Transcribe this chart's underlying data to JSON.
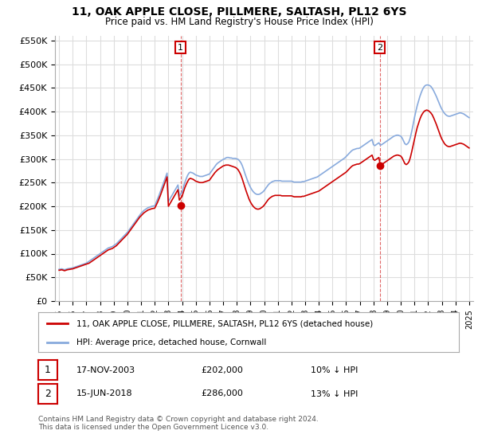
{
  "title": "11, OAK APPLE CLOSE, PILLMERE, SALTASH, PL12 6YS",
  "subtitle": "Price paid vs. HM Land Registry's House Price Index (HPI)",
  "legend_property": "11, OAK APPLE CLOSE, PILLMERE, SALTASH, PL12 6YS (detached house)",
  "legend_hpi": "HPI: Average price, detached house, Cornwall",
  "footnote": "Contains HM Land Registry data © Crown copyright and database right 2024.\nThis data is licensed under the Open Government Licence v3.0.",
  "transaction1": {
    "label": "1",
    "date": "17-NOV-2003",
    "price": "£202,000",
    "hpi": "10% ↓ HPI"
  },
  "transaction2": {
    "label": "2",
    "date": "15-JUN-2018",
    "price": "£286,000",
    "hpi": "13% ↓ HPI"
  },
  "ylim": [
    0,
    560000
  ],
  "yticks": [
    0,
    50000,
    100000,
    150000,
    200000,
    250000,
    300000,
    350000,
    400000,
    450000,
    500000,
    550000
  ],
  "property_color": "#cc0000",
  "hpi_color": "#88aadd",
  "bg_color": "#ffffff",
  "grid_color": "#dddddd",
  "sale1_year": 2003.88,
  "sale1_price": 202000,
  "sale2_year": 2018.46,
  "sale2_price": 286000,
  "hpi_x": [
    1995.0,
    1995.1,
    1995.2,
    1995.3,
    1995.4,
    1995.5,
    1995.6,
    1995.7,
    1995.8,
    1995.9,
    1996.0,
    1996.1,
    1996.2,
    1996.3,
    1996.4,
    1996.5,
    1996.6,
    1996.7,
    1996.8,
    1996.9,
    1997.0,
    1997.1,
    1997.2,
    1997.3,
    1997.4,
    1997.5,
    1997.6,
    1997.7,
    1997.8,
    1997.9,
    1998.0,
    1998.1,
    1998.2,
    1998.3,
    1998.4,
    1998.5,
    1998.6,
    1998.7,
    1998.8,
    1998.9,
    1999.0,
    1999.1,
    1999.2,
    1999.3,
    1999.4,
    1999.5,
    1999.6,
    1999.7,
    1999.8,
    1999.9,
    2000.0,
    2000.1,
    2000.2,
    2000.3,
    2000.4,
    2000.5,
    2000.6,
    2000.7,
    2000.8,
    2000.9,
    2001.0,
    2001.1,
    2001.2,
    2001.3,
    2001.4,
    2001.5,
    2001.6,
    2001.7,
    2001.8,
    2001.9,
    2002.0,
    2002.1,
    2002.2,
    2002.3,
    2002.4,
    2002.5,
    2002.6,
    2002.7,
    2002.8,
    2002.9,
    2003.0,
    2003.1,
    2003.2,
    2003.3,
    2003.4,
    2003.5,
    2003.6,
    2003.7,
    2003.8,
    2003.9,
    2004.0,
    2004.1,
    2004.2,
    2004.3,
    2004.4,
    2004.5,
    2004.6,
    2004.7,
    2004.8,
    2004.9,
    2005.0,
    2005.1,
    2005.2,
    2005.3,
    2005.4,
    2005.5,
    2005.6,
    2005.7,
    2005.8,
    2005.9,
    2006.0,
    2006.1,
    2006.2,
    2006.3,
    2006.4,
    2006.5,
    2006.6,
    2006.7,
    2006.8,
    2006.9,
    2007.0,
    2007.1,
    2007.2,
    2007.3,
    2007.4,
    2007.5,
    2007.6,
    2007.7,
    2007.8,
    2007.9,
    2008.0,
    2008.1,
    2008.2,
    2008.3,
    2008.4,
    2008.5,
    2008.6,
    2008.7,
    2008.8,
    2008.9,
    2009.0,
    2009.1,
    2009.2,
    2009.3,
    2009.4,
    2009.5,
    2009.6,
    2009.7,
    2009.8,
    2009.9,
    2010.0,
    2010.1,
    2010.2,
    2010.3,
    2010.4,
    2010.5,
    2010.6,
    2010.7,
    2010.8,
    2010.9,
    2011.0,
    2011.1,
    2011.2,
    2011.3,
    2011.4,
    2011.5,
    2011.6,
    2011.7,
    2011.8,
    2011.9,
    2012.0,
    2012.1,
    2012.2,
    2012.3,
    2012.4,
    2012.5,
    2012.6,
    2012.7,
    2012.8,
    2012.9,
    2013.0,
    2013.1,
    2013.2,
    2013.3,
    2013.4,
    2013.5,
    2013.6,
    2013.7,
    2013.8,
    2013.9,
    2014.0,
    2014.1,
    2014.2,
    2014.3,
    2014.4,
    2014.5,
    2014.6,
    2014.7,
    2014.8,
    2014.9,
    2015.0,
    2015.1,
    2015.2,
    2015.3,
    2015.4,
    2015.5,
    2015.6,
    2015.7,
    2015.8,
    2015.9,
    2016.0,
    2016.1,
    2016.2,
    2016.3,
    2016.4,
    2016.5,
    2016.6,
    2016.7,
    2016.8,
    2016.9,
    2017.0,
    2017.1,
    2017.2,
    2017.3,
    2017.4,
    2017.5,
    2017.6,
    2017.7,
    2017.8,
    2017.9,
    2018.0,
    2018.1,
    2018.2,
    2018.3,
    2018.4,
    2018.5,
    2018.6,
    2018.7,
    2018.8,
    2018.9,
    2019.0,
    2019.1,
    2019.2,
    2019.3,
    2019.4,
    2019.5,
    2019.6,
    2019.7,
    2019.8,
    2019.9,
    2020.0,
    2020.1,
    2020.2,
    2020.3,
    2020.4,
    2020.5,
    2020.6,
    2020.7,
    2020.8,
    2020.9,
    2021.0,
    2021.1,
    2021.2,
    2021.3,
    2021.4,
    2021.5,
    2021.6,
    2021.7,
    2021.8,
    2021.9,
    2022.0,
    2022.1,
    2022.2,
    2022.3,
    2022.4,
    2022.5,
    2022.6,
    2022.7,
    2022.8,
    2022.9,
    2023.0,
    2023.1,
    2023.2,
    2023.3,
    2023.4,
    2023.5,
    2023.6,
    2023.7,
    2023.8,
    2023.9,
    2024.0,
    2024.1,
    2024.2,
    2024.3,
    2024.4,
    2024.5,
    2024.6,
    2024.7,
    2024.8,
    2024.9,
    2025.0
  ],
  "hpi_y": [
    67000,
    67500,
    68000,
    67000,
    66000,
    67000,
    68000,
    68500,
    69000,
    69500,
    70000,
    71000,
    72000,
    73000,
    74000,
    75000,
    76000,
    77000,
    78000,
    79000,
    80000,
    82000,
    84000,
    86000,
    88000,
    90000,
    92000,
    94000,
    96000,
    98000,
    100000,
    102000,
    104000,
    106000,
    108000,
    110000,
    112000,
    113000,
    114000,
    115000,
    117000,
    119000,
    121000,
    124000,
    127000,
    130000,
    133000,
    136000,
    139000,
    142000,
    145000,
    149000,
    153000,
    157000,
    161000,
    165000,
    169000,
    173000,
    177000,
    181000,
    185000,
    188000,
    191000,
    193000,
    195000,
    197000,
    198000,
    199000,
    200000,
    200500,
    201000,
    208000,
    215000,
    222000,
    230000,
    238000,
    246000,
    254000,
    262000,
    270000,
    210000,
    215000,
    220000,
    225000,
    230000,
    235000,
    240000,
    245000,
    222000,
    226000,
    230000,
    240000,
    250000,
    258000,
    265000,
    270000,
    272000,
    271000,
    270000,
    268000,
    266000,
    265000,
    264000,
    263000,
    263000,
    263000,
    264000,
    265000,
    266000,
    267000,
    268000,
    272000,
    276000,
    280000,
    284000,
    288000,
    291000,
    293000,
    295000,
    297000,
    299000,
    300000,
    302000,
    303000,
    303000,
    302000,
    302000,
    301000,
    301000,
    301000,
    300000,
    299000,
    296000,
    292000,
    286000,
    278000,
    269000,
    261000,
    253000,
    246000,
    240000,
    235000,
    231000,
    228000,
    226000,
    225000,
    225000,
    226000,
    228000,
    230000,
    233000,
    237000,
    241000,
    245000,
    248000,
    250000,
    252000,
    253000,
    254000,
    254000,
    254000,
    254000,
    254000,
    253000,
    253000,
    253000,
    253000,
    253000,
    253000,
    253000,
    253000,
    252000,
    251000,
    251000,
    251000,
    251000,
    251000,
    251000,
    252000,
    252000,
    253000,
    254000,
    255000,
    256000,
    257000,
    258000,
    259000,
    260000,
    261000,
    262000,
    264000,
    266000,
    268000,
    270000,
    272000,
    274000,
    276000,
    278000,
    280000,
    282000,
    284000,
    286000,
    288000,
    290000,
    292000,
    294000,
    296000,
    298000,
    300000,
    302000,
    305000,
    308000,
    311000,
    314000,
    317000,
    319000,
    320000,
    321000,
    322000,
    322000,
    323000,
    325000,
    327000,
    329000,
    331000,
    333000,
    335000,
    337000,
    339000,
    341000,
    330000,
    328000,
    330000,
    332000,
    334000,
    329000,
    330000,
    332000,
    334000,
    336000,
    338000,
    340000,
    342000,
    344000,
    346000,
    348000,
    349000,
    350000,
    350000,
    349000,
    348000,
    344000,
    338000,
    332000,
    330000,
    332000,
    336000,
    345000,
    358000,
    372000,
    387000,
    400000,
    412000,
    422000,
    432000,
    440000,
    447000,
    452000,
    455000,
    456000,
    456000,
    455000,
    453000,
    449000,
    444000,
    438000,
    432000,
    425000,
    418000,
    411000,
    405000,
    400000,
    396000,
    393000,
    391000,
    390000,
    390000,
    391000,
    392000,
    393000,
    394000,
    395000,
    396000,
    397000,
    397000,
    396000,
    395000,
    393000,
    391000,
    389000,
    387000
  ],
  "prop_y": [
    65000,
    65500,
    66000,
    65000,
    64000,
    65000,
    66000,
    66500,
    67000,
    67500,
    68000,
    69000,
    70000,
    71000,
    72000,
    73000,
    74000,
    75000,
    76000,
    77000,
    78000,
    79000,
    80000,
    82000,
    84000,
    86000,
    88000,
    90000,
    92000,
    94000,
    96000,
    98000,
    100000,
    102000,
    104000,
    106000,
    108000,
    109000,
    110000,
    111000,
    113000,
    115000,
    117000,
    120000,
    123000,
    126000,
    129000,
    132000,
    135000,
    138000,
    141000,
    145000,
    149000,
    153000,
    157000,
    161000,
    165000,
    169000,
    173000,
    177000,
    180000,
    183000,
    186000,
    188000,
    190000,
    192000,
    193000,
    194000,
    195000,
    195500,
    196000,
    202000,
    208000,
    215000,
    222000,
    230000,
    238000,
    246000,
    254000,
    262000,
    200000,
    205000,
    210000,
    215000,
    220000,
    225000,
    230000,
    235000,
    213000,
    217000,
    221000,
    230000,
    239000,
    246000,
    252000,
    257000,
    259000,
    258000,
    257000,
    255000,
    253000,
    252000,
    251000,
    250000,
    250000,
    250000,
    251000,
    252000,
    253000,
    254000,
    255000,
    259000,
    263000,
    267000,
    271000,
    274000,
    277000,
    279000,
    281000,
    283000,
    285000,
    286000,
    287000,
    287000,
    287000,
    286000,
    285000,
    284000,
    283000,
    282000,
    280000,
    277000,
    272000,
    266000,
    258000,
    249000,
    240000,
    231000,
    223000,
    215000,
    209000,
    204000,
    200000,
    197000,
    195000,
    194000,
    194000,
    195000,
    197000,
    199000,
    202000,
    206000,
    210000,
    214000,
    217000,
    219000,
    221000,
    222000,
    223000,
    223000,
    223000,
    223000,
    223000,
    222000,
    222000,
    222000,
    222000,
    222000,
    222000,
    222000,
    222000,
    221000,
    220000,
    220000,
    220000,
    220000,
    220000,
    220000,
    221000,
    221000,
    222000,
    223000,
    224000,
    225000,
    226000,
    227000,
    228000,
    229000,
    230000,
    231000,
    232000,
    234000,
    236000,
    238000,
    240000,
    242000,
    244000,
    246000,
    248000,
    250000,
    252000,
    254000,
    256000,
    258000,
    260000,
    262000,
    264000,
    266000,
    268000,
    270000,
    272000,
    275000,
    278000,
    281000,
    284000,
    286000,
    287000,
    288000,
    289000,
    289000,
    290000,
    292000,
    294000,
    296000,
    298000,
    300000,
    302000,
    304000,
    306000,
    308000,
    299000,
    297000,
    299000,
    301000,
    303000,
    286000,
    288000,
    290000,
    292000,
    294000,
    296000,
    298000,
    300000,
    302000,
    304000,
    306000,
    307000,
    308000,
    308000,
    307000,
    306000,
    302000,
    296000,
    290000,
    288000,
    290000,
    294000,
    303000,
    315000,
    328000,
    341000,
    354000,
    366000,
    375000,
    384000,
    391000,
    396000,
    400000,
    402000,
    403000,
    402000,
    400000,
    397000,
    393000,
    387000,
    380000,
    373000,
    365000,
    357000,
    349000,
    342000,
    337000,
    332000,
    329000,
    327000,
    326000,
    326000,
    327000,
    328000,
    329000,
    330000,
    331000,
    332000,
    333000,
    333000,
    332000,
    331000,
    329000,
    327000,
    325000,
    323000
  ]
}
